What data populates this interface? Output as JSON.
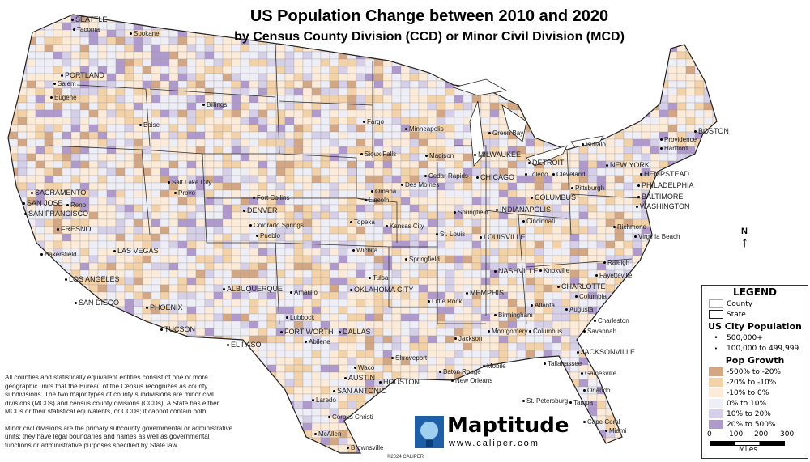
{
  "title": "US Population Change between 2010 and 2020",
  "subtitle": "by Census County Division (CCD) or Minor Civil Division (MCD)",
  "notes": [
    "All counties and statistically equivalent entities consist of one or more geographic units that the Bureau of the Census recognizes as county subdivisions. The two major types of county subdivisions are minor civil divisions (MCDs) and census county divisions (CCDs). A State has either MCDs or their statistical equivalents, or CCDs; it cannot contain both.",
    "Minor civil divisions are the primary subcounty governmental or administrative units; they have legal boundaries and names as well as governmental functions or administrative purposes specified by State law."
  ],
  "legend": {
    "title": "LEGEND",
    "county": "County",
    "state": "State",
    "city_title": "US City Population",
    "city_classes": [
      "500,000+",
      "100,000 to 499,999"
    ],
    "growth_title": "Pop Growth",
    "growth_classes": [
      {
        "label": "-500% to -20%",
        "color": "#d3a783"
      },
      {
        "label": "-20% to -10%",
        "color": "#f3d2a8"
      },
      {
        "label": "-10% to 0%",
        "color": "#fcebd8"
      },
      {
        "label": "0% to 10%",
        "color": "#eeeef6"
      },
      {
        "label": "10% to 20%",
        "color": "#d5cfe8"
      },
      {
        "label": "20% to 500%",
        "color": "#b09acd"
      }
    ],
    "scale_ticks": [
      "0",
      "100",
      "200",
      "300"
    ],
    "scale_unit": "Miles"
  },
  "north_label": "N",
  "logo": {
    "name": "Maptitude",
    "url": "www.caliper.com"
  },
  "copyright": "©2024 CALIPER",
  "cities": [
    "SEATTLE",
    "Tacoma",
    "Spokane",
    "PORTLAND",
    "Salem",
    "Eugene",
    "Boise",
    "Billings",
    "Fargo",
    "Minneapolis",
    "Green Bay",
    "BOSTON",
    "Providence",
    "Hartford",
    "Sioux Falls",
    "Madison",
    "MILWAUKEE",
    "DETROIT",
    "Buffalo",
    "NEW YORK",
    "HEMPSTEAD",
    "Reno",
    "SACRAMENTO",
    "SAN FRANCISCO",
    "SAN JOSE",
    "Salt Lake City",
    "Provo",
    "Fort Collins",
    "DENVER",
    "Omaha",
    "Lincoln",
    "Des Moines",
    "Cedar Rapids",
    "CHICAGO",
    "Toledo",
    "Cleveland",
    "Pittsburgh",
    "PHILADELPHIA",
    "BALTIMORE",
    "WASHINGTON",
    "FRESNO",
    "Colorado Springs",
    "Pueblo",
    "Topeka",
    "Kansas City",
    "Springfield",
    "INDIANAPOLIS",
    "COLUMBUS",
    "Cincinnati",
    "St. Louis",
    "LOUISVILLE",
    "Richmond",
    "Virginia Beach",
    "Bakersfield",
    "LAS VEGAS",
    "Wichita",
    "Springfield",
    "NASHVILLE",
    "Knoxville",
    "Raleigh",
    "Fayetteville",
    "LOS ANGELES",
    "Tulsa",
    "Amarillo",
    "OKLAHOMA CITY",
    "ALBUQUERQUE",
    "CHARLOTTE",
    "MEMPHIS",
    "Little Rock",
    "Atlanta",
    "Columbia",
    "Augusta",
    "Charleston",
    "SAN DIEGO",
    "PHOENIX",
    "Lubbock",
    "Birmingham",
    "TUCSON",
    "EL PASO",
    "FORT WORTH",
    "DALLAS",
    "Abilene",
    "Shreveport",
    "Jackson",
    "Montgomery",
    "Columbus",
    "Savannah",
    "Waco",
    "Tallahassee",
    "JACKSONVILLE",
    "Gainesville",
    "AUSTIN",
    "HOUSTON",
    "Baton Rouge",
    "New Orleans",
    "Mobile",
    "SAN ANTONIO",
    "Orlando",
    "St. Petersburg",
    "Tampa",
    "Laredo",
    "Corpus Christi",
    "Cape Coral",
    "Miami",
    "McAllen",
    "Brownsville"
  ]
}
